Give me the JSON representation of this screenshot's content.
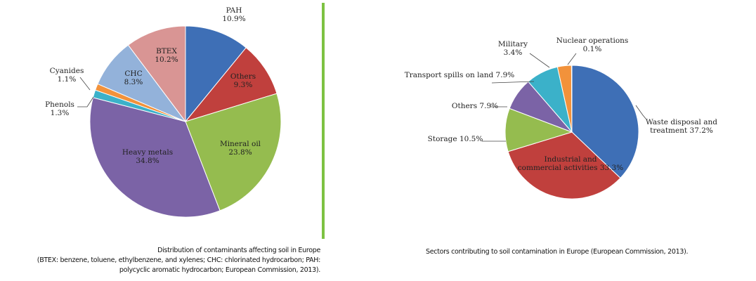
{
  "chart_data": [
    {
      "type": "pie",
      "title": "Distribution of contaminants affecting soil in Europe",
      "caption_lines": [
        "Distribution of contaminants affecting soil in Europe",
        "(BTEX: benzene, toluene, ethylbenzene, and xylenes; CHC: chlorinated hydrocarbon; PAH:",
        "polycyclic aromatic hydrocarbon; European Commission, 2013)."
      ],
      "slices": [
        {
          "name": "PAH",
          "value": 10.9,
          "label": "10.9%",
          "color": "#3e6fb6"
        },
        {
          "name": "Others",
          "value": 9.3,
          "label": "9.3%",
          "color": "#c0403d"
        },
        {
          "name": "Mineral oil",
          "value": 23.8,
          "label": "23.8%",
          "color": "#95bc4f"
        },
        {
          "name": "Heavy metals",
          "value": 34.8,
          "label": "34.8%",
          "color": "#7b63a6"
        },
        {
          "name": "Phenols",
          "value": 1.3,
          "label": "1.3%",
          "color": "#3bb1c9"
        },
        {
          "name": "Cyanides",
          "value": 1.1,
          "label": "1.1%",
          "color": "#f2923b"
        },
        {
          "name": "CHC",
          "value": 8.3,
          "label": "8.3%",
          "color": "#93b2da"
        },
        {
          "name": "BTEX",
          "value": 10.2,
          "label": "10.2%",
          "color": "#d99594"
        }
      ]
    },
    {
      "type": "pie",
      "title": "Sectors contributing to soil contamination in Europe",
      "caption_lines": [
        "Sectors contributing to soil contamination in Europe (European Commission, 2013)."
      ],
      "slices": [
        {
          "name": "Waste disposal and treatment",
          "value": 37.2,
          "label": "37.2%",
          "color": "#3e6fb6",
          "lines": [
            "Waste disposal and",
            "treatment 37.2%"
          ]
        },
        {
          "name": "Industrial and commercial activities",
          "value": 33.3,
          "label": "33.3%",
          "color": "#c0403d",
          "lines": [
            "Industrial and",
            "commercial activities 33.3%"
          ]
        },
        {
          "name": "Storage",
          "value": 10.5,
          "label": "10.5%",
          "color": "#95bc4f",
          "lines": [
            "Storage 10.5%"
          ]
        },
        {
          "name": "Others",
          "value": 7.9,
          "label": "7.9%",
          "color": "#7b63a6",
          "lines": [
            "Others 7.9%"
          ]
        },
        {
          "name": "Transport spills on land",
          "value": 7.9,
          "label": "7.9%",
          "color": "#3bb1c9",
          "lines": [
            "Transport spills on land 7.9%"
          ]
        },
        {
          "name": "Military",
          "value": 3.4,
          "label": "3.4%",
          "color": "#f2923b",
          "lines": [
            "Military",
            "3.4%"
          ]
        },
        {
          "name": "Nuclear operations",
          "value": 0.1,
          "label": "0.1%",
          "color": "#93b2da",
          "lines": [
            "Nuclear operations",
            "0.1%"
          ]
        }
      ]
    }
  ]
}
